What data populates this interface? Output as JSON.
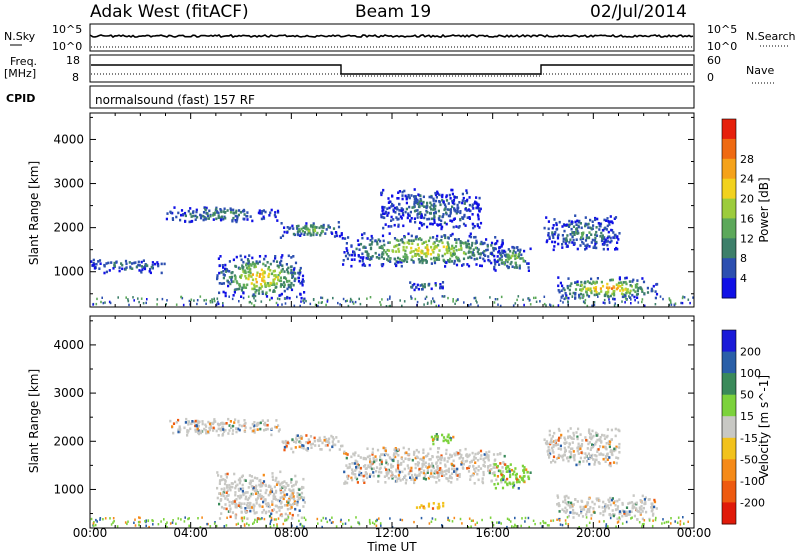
{
  "header": {
    "station": "Adak West (fitACF)",
    "beam": "Beam 19",
    "date": "02/Jul/2014"
  },
  "top_panels": {
    "nsky_label": "N.Sky",
    "nsky_ticks": [
      "10^5",
      "10^0"
    ],
    "nsearch_label": "N.Search",
    "nsearch_ticks": [
      "10^5",
      "10^0"
    ],
    "freq_label_1": "Freq.",
    "freq_label_2": "[MHz]",
    "freq_ticks": [
      "18",
      "8"
    ],
    "nave_label": "Nave",
    "nave_ticks": [
      "60",
      "0"
    ],
    "cpid_label": "CPID",
    "cpid_value": "normalsound (fast) 157 RF"
  },
  "chart_data": [
    {
      "type": "heatmap",
      "name": "Power",
      "ylabel": "Slant Range [km]",
      "xlabel": "Time UT",
      "x_ticks": [
        "00:00",
        "04:00",
        "08:00",
        "12:00",
        "16:00",
        "20:00",
        "00:00"
      ],
      "y_ticks": [
        1000,
        2000,
        3000,
        4000
      ],
      "ylim": [
        200,
        4600
      ],
      "xlim_hours": [
        0,
        24
      ],
      "colorbar": {
        "label": "Power [dB]",
        "ticks": [
          "4",
          "8",
          "12",
          "16",
          "20",
          "24",
          "28"
        ],
        "colors": [
          "#1010e6",
          "#2c4fb0",
          "#3d7f6a",
          "#5ca85a",
          "#9ccc3c",
          "#f2d21e",
          "#f5a21a",
          "#ef6a12",
          "#e6200c"
        ]
      },
      "echo_regions": [
        {
          "t0": 0.0,
          "t1": 3.0,
          "r0": 1000,
          "r1": 1300,
          "power": 8
        },
        {
          "t0": 3.0,
          "t1": 7.5,
          "r0": 2150,
          "r1": 2500,
          "power": 10
        },
        {
          "t0": 5.0,
          "t1": 8.5,
          "r0": 400,
          "r1": 1400,
          "power": 22
        },
        {
          "t0": 7.5,
          "t1": 10.0,
          "r0": 1800,
          "r1": 2150,
          "power": 14
        },
        {
          "t0": 10.0,
          "t1": 16.5,
          "r0": 1150,
          "r1": 1900,
          "power": 20
        },
        {
          "t0": 11.5,
          "t1": 15.5,
          "r0": 2000,
          "r1": 2900,
          "power": 8
        },
        {
          "t0": 12.5,
          "t1": 14.0,
          "r0": 600,
          "r1": 800,
          "power": 8
        },
        {
          "t0": 16.0,
          "t1": 17.5,
          "r0": 1050,
          "r1": 1600,
          "power": 16
        },
        {
          "t0": 18.0,
          "t1": 21.0,
          "r0": 1500,
          "r1": 2300,
          "power": 10
        },
        {
          "t0": 18.5,
          "t1": 22.5,
          "r0": 400,
          "r1": 900,
          "power": 24
        }
      ]
    },
    {
      "type": "heatmap",
      "name": "Velocity",
      "ylabel": "Slant Range [km]",
      "xlabel": "Time UT",
      "x_ticks": [
        "00:00",
        "04:00",
        "08:00",
        "12:00",
        "16:00",
        "20:00",
        "00:00"
      ],
      "y_ticks": [
        1000,
        2000,
        3000,
        4000
      ],
      "ylim": [
        200,
        4600
      ],
      "xlim_hours": [
        0,
        24
      ],
      "colorbar": {
        "label": "Velocity [m s^-1]",
        "ticks": [
          "200",
          "100",
          "50",
          "15",
          "-15",
          "-50",
          "-100",
          "-200"
        ],
        "colors": [
          "#1a1ad8",
          "#2a5fa8",
          "#3a8a5a",
          "#7cd23c",
          "#c8c8c4",
          "#f2c21c",
          "#f58a18",
          "#ee5a10",
          "#e01a0a"
        ]
      },
      "echo_regions": [
        {
          "t0": 3.0,
          "t1": 7.5,
          "r0": 2150,
          "r1": 2500,
          "velocity": 0
        },
        {
          "t0": 5.0,
          "t1": 8.5,
          "r0": 400,
          "r1": 1400,
          "velocity": 0
        },
        {
          "t0": 7.5,
          "t1": 10.0,
          "r0": 1800,
          "r1": 2150,
          "velocity": 0
        },
        {
          "t0": 10.0,
          "t1": 16.5,
          "r0": 1150,
          "r1": 1900,
          "velocity": 0
        },
        {
          "t0": 13.5,
          "t1": 14.5,
          "r0": 1950,
          "r1": 2200,
          "velocity": 40
        },
        {
          "t0": 16.0,
          "t1": 17.5,
          "r0": 1050,
          "r1": 1600,
          "velocity": 40
        },
        {
          "t0": 12.8,
          "t1": 14.0,
          "r0": 600,
          "r1": 750,
          "velocity": -40
        },
        {
          "t0": 18.0,
          "t1": 21.0,
          "r0": 1500,
          "r1": 2300,
          "velocity": 0
        },
        {
          "t0": 18.5,
          "t1": 22.5,
          "r0": 400,
          "r1": 900,
          "velocity": 0
        }
      ]
    }
  ]
}
